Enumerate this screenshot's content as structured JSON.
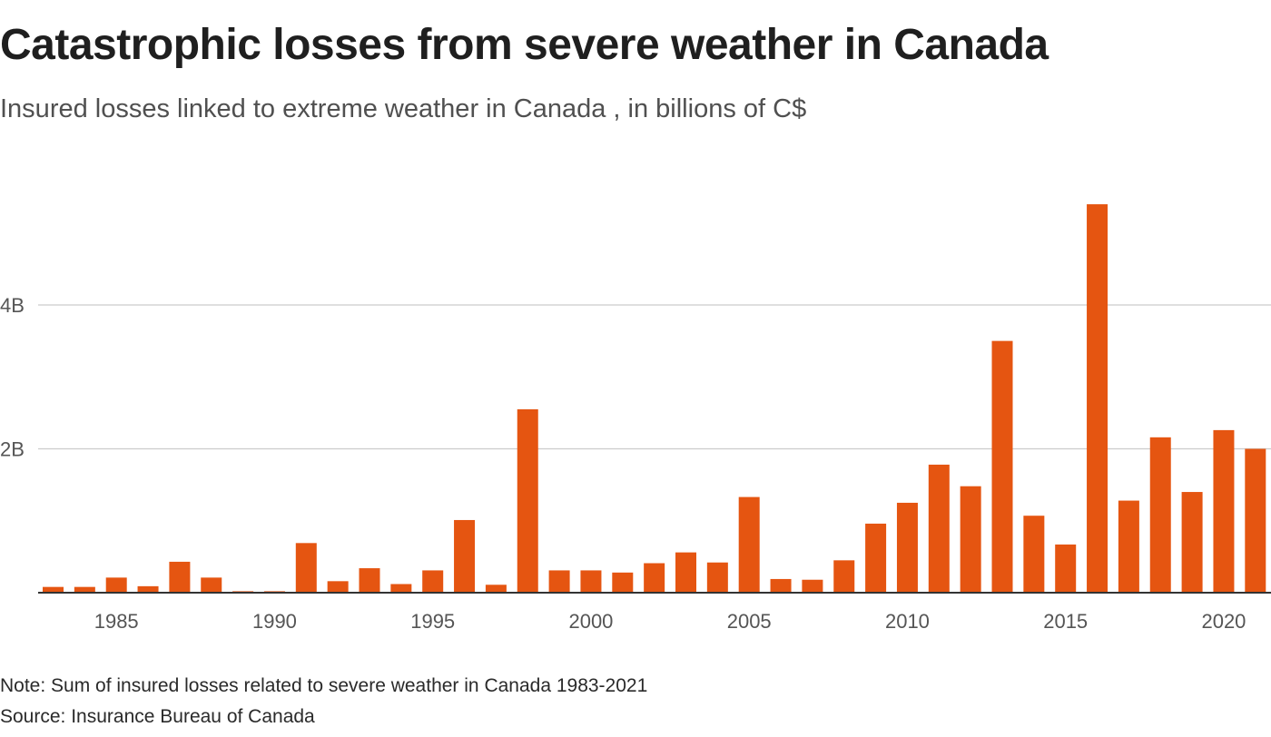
{
  "title": "Catastrophic losses from severe weather in Canada",
  "subtitle": "Insured losses linked to extreme weather in Canada , in billions of C$",
  "note": "Note: Sum of insured losses related to severe weather in Canada 1983-2021",
  "source": "Source: Insurance Bureau of Canada",
  "colors": {
    "bar": "#e55511",
    "grid": "#cccccc",
    "axis": "#333333"
  },
  "chart_data": {
    "type": "bar",
    "title": "Catastrophic losses from severe weather in Canada",
    "subtitle": "Insured losses linked to extreme weather in Canada , in billions of C$",
    "xlabel": "",
    "ylabel": "",
    "categories": [
      1983,
      1984,
      1985,
      1986,
      1987,
      1988,
      1989,
      1990,
      1991,
      1992,
      1993,
      1994,
      1995,
      1996,
      1997,
      1998,
      1999,
      2000,
      2001,
      2002,
      2003,
      2004,
      2005,
      2006,
      2007,
      2008,
      2009,
      2010,
      2011,
      2012,
      2013,
      2014,
      2015,
      2016,
      2017,
      2018,
      2019,
      2020,
      2021
    ],
    "values": [
      0.08,
      0.08,
      0.21,
      0.09,
      0.43,
      0.21,
      0.02,
      0.02,
      0.69,
      0.16,
      0.34,
      0.12,
      0.31,
      1.01,
      0.11,
      2.55,
      0.31,
      0.31,
      0.28,
      0.41,
      0.56,
      0.42,
      1.33,
      0.19,
      0.18,
      0.45,
      0.96,
      1.25,
      1.78,
      1.48,
      3.5,
      1.07,
      0.67,
      5.4,
      1.28,
      2.16,
      1.4,
      2.26,
      2.0
    ],
    "ylim": [
      0,
      5.6
    ],
    "y_ticks": [
      2,
      4
    ],
    "y_tick_labels": [
      "2B",
      "4B"
    ],
    "x_ticks": [
      1985,
      1990,
      1995,
      2000,
      2005,
      2010,
      2015,
      2020
    ],
    "x_tick_labels": [
      "1985",
      "1990",
      "1995",
      "2000",
      "2005",
      "2010",
      "2015",
      "2020"
    ],
    "grid": "horizontal"
  }
}
